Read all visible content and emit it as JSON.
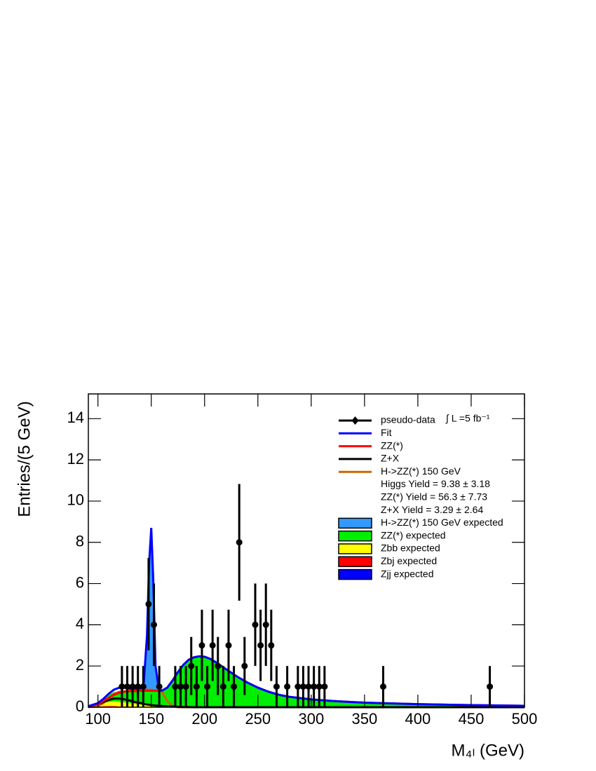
{
  "chart_data": {
    "type": "line",
    "y_label": "Entries/(5 GeV)",
    "x_label": "M₄ₗ (GeV)",
    "luminosity_label": "∫ L =5 fb⁻¹",
    "xlim": [
      91,
      500
    ],
    "ylim": [
      0,
      15.2
    ],
    "xticks": [
      100,
      150,
      200,
      250,
      300,
      350,
      400,
      450,
      500
    ],
    "yticks": [
      0,
      2,
      4,
      6,
      8,
      10,
      12,
      14
    ],
    "x": [
      91,
      100,
      105,
      110,
      115,
      120,
      125,
      130,
      135,
      140,
      143,
      146,
      148,
      150,
      152,
      154,
      157,
      160,
      165,
      170,
      175,
      180,
      185,
      190,
      195,
      200,
      205,
      210,
      220,
      230,
      240,
      250,
      260,
      270,
      280,
      300,
      320,
      350,
      400,
      450,
      500
    ],
    "series": [
      {
        "name": "pseudo-data",
        "kind": "points",
        "color": "#000000",
        "x": [
          122.5,
          127.5,
          132.5,
          137.5,
          142.5,
          147.5,
          152.5,
          157.5,
          172.5,
          177.5,
          182.5,
          187.5,
          192.5,
          197.5,
          202.5,
          207.5,
          212.5,
          217.5,
          222.5,
          227.5,
          232.5,
          237.5,
          247.5,
          252.5,
          257.5,
          262.5,
          267.5,
          277.5,
          287.5,
          292.5,
          297.5,
          302.5,
          307.5,
          312.5,
          367.5,
          467.5
        ],
        "values": [
          1,
          1,
          1,
          1,
          1,
          5,
          4,
          1,
          1,
          1,
          1,
          2,
          1,
          3,
          1,
          3,
          2,
          1,
          3,
          1,
          8,
          2,
          4,
          3,
          4,
          3,
          1,
          1,
          1,
          1,
          1,
          1,
          1,
          1,
          1,
          1
        ],
        "errors": [
          1,
          1,
          1,
          1,
          1,
          2.24,
          2,
          1,
          1,
          1,
          1,
          1.41,
          1,
          1.73,
          1,
          1.73,
          1.41,
          1,
          1.73,
          1,
          2.83,
          1.41,
          2,
          1.73,
          2,
          1.73,
          1,
          1,
          1,
          1,
          1,
          1,
          1,
          1,
          1,
          1
        ]
      },
      {
        "name": "Fit",
        "kind": "line",
        "color": "#0000ff",
        "values": [
          0.05,
          0.2,
          0.4,
          0.65,
          0.85,
          0.95,
          0.95,
          0.9,
          0.9,
          0.92,
          1.2,
          3.5,
          7,
          8.7,
          6,
          2,
          0.9,
          0.8,
          0.95,
          1.3,
          1.7,
          2.05,
          2.3,
          2.42,
          2.47,
          2.45,
          2.35,
          2.2,
          1.85,
          1.5,
          1.2,
          0.95,
          0.75,
          0.6,
          0.5,
          0.38,
          0.3,
          0.22,
          0.15,
          0.1,
          0.07
        ]
      },
      {
        "name": "ZZ(*)",
        "kind": "line",
        "color": "#ff0000",
        "values": [
          0.04,
          0.15,
          0.3,
          0.45,
          0.6,
          0.7,
          0.75,
          0.78,
          0.78,
          0.8,
          0.8,
          0.8,
          0.8,
          0.8,
          0.8,
          0.8,
          0.8,
          0.8,
          0.95,
          1.3,
          1.7,
          2.05,
          2.3,
          2.42,
          2.47,
          2.45,
          2.35,
          2.2,
          1.85,
          1.5,
          1.2,
          0.95,
          0.75,
          0.6,
          0.5,
          0.38,
          0.3,
          0.22,
          0.15,
          0.1,
          0.07
        ]
      },
      {
        "name": "Z+X",
        "kind": "line",
        "color": "#000000",
        "values": [
          0.02,
          0.15,
          0.25,
          0.35,
          0.42,
          0.42,
          0.38,
          0.32,
          0.25,
          0.2,
          0.16,
          0.13,
          0.12,
          0.1,
          0.09,
          0.08,
          0.07,
          0.06,
          0.04,
          0.03,
          0.02,
          0.01,
          0.01,
          0,
          0,
          0,
          0,
          0,
          0,
          0,
          0,
          0,
          0,
          0,
          0,
          0,
          0,
          0,
          0,
          0,
          0
        ]
      },
      {
        "name": "H->ZZ(*) 150 GeV",
        "kind": "line",
        "color": "#cc6600",
        "values": [
          0,
          0.05,
          0.2,
          0.45,
          0.65,
          0.75,
          0.78,
          0.8,
          0.8,
          0.82,
          0.85,
          0.85,
          0.85,
          0.85,
          0.83,
          0.8,
          0.78,
          0.75,
          0.3,
          0.05,
          0,
          0,
          0,
          0,
          0,
          0,
          0,
          0,
          0,
          0,
          0,
          0,
          0,
          0,
          0,
          0,
          0,
          0,
          0,
          0,
          0
        ]
      },
      {
        "name": "H->ZZ(*) 150 GeV expected",
        "kind": "area",
        "color": "#3399ff",
        "values": [
          0,
          0,
          0,
          0,
          0,
          0,
          0,
          0,
          0,
          0,
          0.2,
          2.8,
          6.2,
          7.3,
          4.8,
          1.2,
          0.1,
          0,
          0,
          0,
          0,
          0,
          0,
          0,
          0,
          0,
          0,
          0,
          0,
          0,
          0,
          0,
          0,
          0,
          0,
          0,
          0,
          0,
          0,
          0,
          0
        ]
      },
      {
        "name": "ZZ(*) expected",
        "kind": "area",
        "color": "#00ee00",
        "values": [
          0.03,
          0.1,
          0.2,
          0.35,
          0.45,
          0.5,
          0.55,
          0.6,
          0.62,
          0.65,
          0.66,
          0.68,
          0.7,
          0.7,
          0.7,
          0.7,
          0.72,
          0.75,
          0.9,
          1.25,
          1.65,
          2.0,
          2.25,
          2.38,
          2.42,
          2.4,
          2.3,
          2.15,
          1.8,
          1.45,
          1.15,
          0.92,
          0.73,
          0.58,
          0.48,
          0.36,
          0.28,
          0.2,
          0.14,
          0.09,
          0.06
        ]
      },
      {
        "name": "Zbb expected",
        "kind": "area",
        "color": "#ffff00",
        "values": [
          0.01,
          0.08,
          0.15,
          0.2,
          0.22,
          0.22,
          0.2,
          0.18,
          0.15,
          0.12,
          0.1,
          0.08,
          0.07,
          0.06,
          0.05,
          0.04,
          0.03,
          0.02,
          0.01,
          0,
          0,
          0,
          0,
          0,
          0,
          0,
          0,
          0,
          0,
          0,
          0,
          0,
          0,
          0,
          0,
          0,
          0,
          0,
          0,
          0,
          0
        ]
      },
      {
        "name": "Zbj expected",
        "kind": "area",
        "color": "#ff0000",
        "values": [
          0,
          0.02,
          0.03,
          0.04,
          0.04,
          0.03,
          0.03,
          0.02,
          0.02,
          0.01,
          0.01,
          0.01,
          0,
          0,
          0,
          0,
          0,
          0,
          0,
          0,
          0,
          0,
          0,
          0,
          0,
          0,
          0,
          0,
          0,
          0,
          0,
          0,
          0,
          0,
          0,
          0,
          0,
          0,
          0,
          0,
          0
        ]
      },
      {
        "name": "Zjj expected",
        "kind": "area",
        "color": "#0000ff",
        "values": [
          0,
          0.01,
          0.02,
          0.02,
          0.02,
          0.01,
          0.01,
          0.01,
          0,
          0,
          0,
          0,
          0,
          0,
          0,
          0,
          0,
          0,
          0,
          0,
          0,
          0,
          0,
          0,
          0,
          0,
          0,
          0,
          0,
          0,
          0,
          0,
          0,
          0,
          0,
          0,
          0,
          0,
          0,
          0,
          0
        ]
      }
    ],
    "annotations": [
      "Higgs  Yield = 9.38  ± 3.18",
      "ZZ(*) Yield = 56.3  ± 7.73",
      "Z+X Yield = 3.29  ± 2.64"
    ]
  }
}
